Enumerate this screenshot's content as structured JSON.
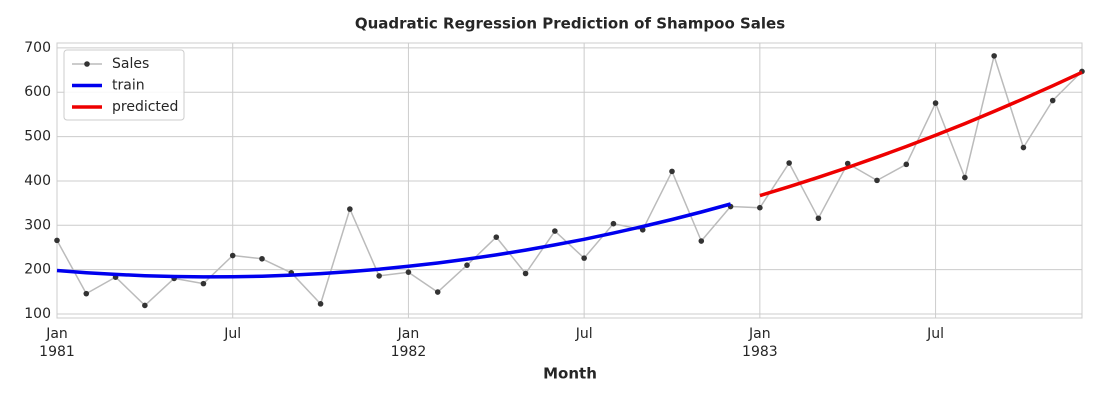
{
  "chart_data": {
    "type": "line",
    "title": "Quadratic Regression Prediction of Shampoo Sales",
    "xlabel": "Month",
    "x": [
      "1981-01",
      "1981-02",
      "1981-03",
      "1981-04",
      "1981-05",
      "1981-06",
      "1981-07",
      "1981-08",
      "1981-09",
      "1981-10",
      "1981-11",
      "1981-12",
      "1982-01",
      "1982-02",
      "1982-03",
      "1982-04",
      "1982-05",
      "1982-06",
      "1982-07",
      "1982-08",
      "1982-09",
      "1982-10",
      "1982-11",
      "1982-12",
      "1983-01",
      "1983-02",
      "1983-03",
      "1983-04",
      "1983-05",
      "1983-06",
      "1983-07",
      "1983-08",
      "1983-09",
      "1983-10",
      "1983-11",
      "1983-12"
    ],
    "series": [
      {
        "name": "Sales",
        "color": "#bbbbbb",
        "marker_color": "#333333",
        "values": [
          266.0,
          145.9,
          183.1,
          119.3,
          180.3,
          168.5,
          231.8,
          224.5,
          192.8,
          122.9,
          336.5,
          185.9,
          194.3,
          149.5,
          210.1,
          273.3,
          191.4,
          287.0,
          226.0,
          303.6,
          289.9,
          421.6,
          264.5,
          342.3,
          339.7,
          440.4,
          315.9,
          439.3,
          401.3,
          437.4,
          575.5,
          407.6,
          682.0,
          475.3,
          581.3,
          646.9
        ]
      },
      {
        "name": "train",
        "color": "#0000ee",
        "values": [
          198.0,
          193.1,
          189.2,
          186.3,
          184.5,
          183.7,
          184.0,
          185.3,
          187.7,
          191.1,
          195.5,
          201.0,
          207.5,
          215.1,
          223.7,
          233.3,
          244.0,
          255.7,
          268.5,
          282.3,
          297.2,
          313.1,
          330.0,
          348.0,
          null,
          null,
          null,
          null,
          null,
          null,
          null,
          null,
          null,
          null,
          null,
          null
        ]
      },
      {
        "name": "predicted",
        "color": "#ee0000",
        "values": [
          null,
          null,
          null,
          null,
          null,
          null,
          null,
          null,
          null,
          null,
          null,
          null,
          null,
          null,
          null,
          null,
          null,
          null,
          null,
          null,
          null,
          null,
          null,
          null,
          367.0,
          387.1,
          408.2,
          430.4,
          453.5,
          477.7,
          503.0,
          529.3,
          556.7,
          585.1,
          614.5,
          645.0
        ]
      }
    ],
    "xlim": [
      "1981-01",
      "1983-12"
    ],
    "xticks": [
      {
        "value": "1981-01",
        "label": "Jan",
        "year": "1981"
      },
      {
        "value": "1981-07",
        "label": "Jul"
      },
      {
        "value": "1982-01",
        "label": "Jan",
        "year": "1982"
      },
      {
        "value": "1982-07",
        "label": "Jul"
      },
      {
        "value": "1983-01",
        "label": "Jan",
        "year": "1983"
      },
      {
        "value": "1983-07",
        "label": "Jul"
      }
    ],
    "ylim": [
      91,
      711
    ],
    "yticks": [
      100,
      200,
      300,
      400,
      500,
      600,
      700
    ],
    "grid": true,
    "legend": "upper left"
  }
}
